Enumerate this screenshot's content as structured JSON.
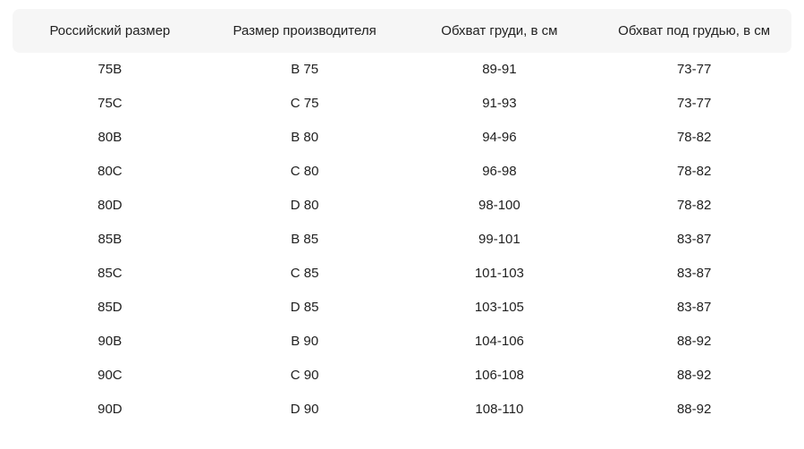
{
  "table": {
    "columns": [
      "Российский размер",
      "Размер производителя",
      "Обхват груди, в см",
      "Обхват под грудью, в см"
    ],
    "rows": [
      [
        "75B",
        "B 75",
        "89-91",
        "73-77"
      ],
      [
        "75C",
        "C 75",
        "91-93",
        "73-77"
      ],
      [
        "80B",
        "B 80",
        "94-96",
        "78-82"
      ],
      [
        "80C",
        "C 80",
        "96-98",
        "78-82"
      ],
      [
        "80D",
        "D 80",
        "98-100",
        "78-82"
      ],
      [
        "85B",
        "B 85",
        "99-101",
        "83-87"
      ],
      [
        "85C",
        "C 85",
        "101-103",
        "83-87"
      ],
      [
        "85D",
        "D 85",
        "103-105",
        "83-87"
      ],
      [
        "90B",
        "B 90",
        "104-106",
        "88-92"
      ],
      [
        "90C",
        "C 90",
        "106-108",
        "88-92"
      ],
      [
        "90D",
        "D 90",
        "108-110",
        "88-92"
      ]
    ]
  },
  "colors": {
    "header_bg": "#f6f6f6",
    "text": "#212121",
    "page_bg": "#ffffff"
  }
}
